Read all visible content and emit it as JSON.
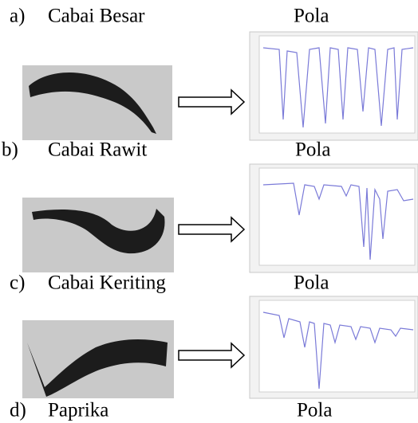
{
  "labels": [
    {
      "marker": "a)",
      "name": "Cabai Besar",
      "pattern": "Pola"
    },
    {
      "marker": "b)",
      "name": "Cabai Rawit",
      "pattern": "Pola"
    },
    {
      "marker": "c)",
      "name": "Cabai Keriting",
      "pattern": "Pola"
    },
    {
      "marker": "d)",
      "name": "Paprika",
      "pattern": "Pola"
    }
  ]
}
